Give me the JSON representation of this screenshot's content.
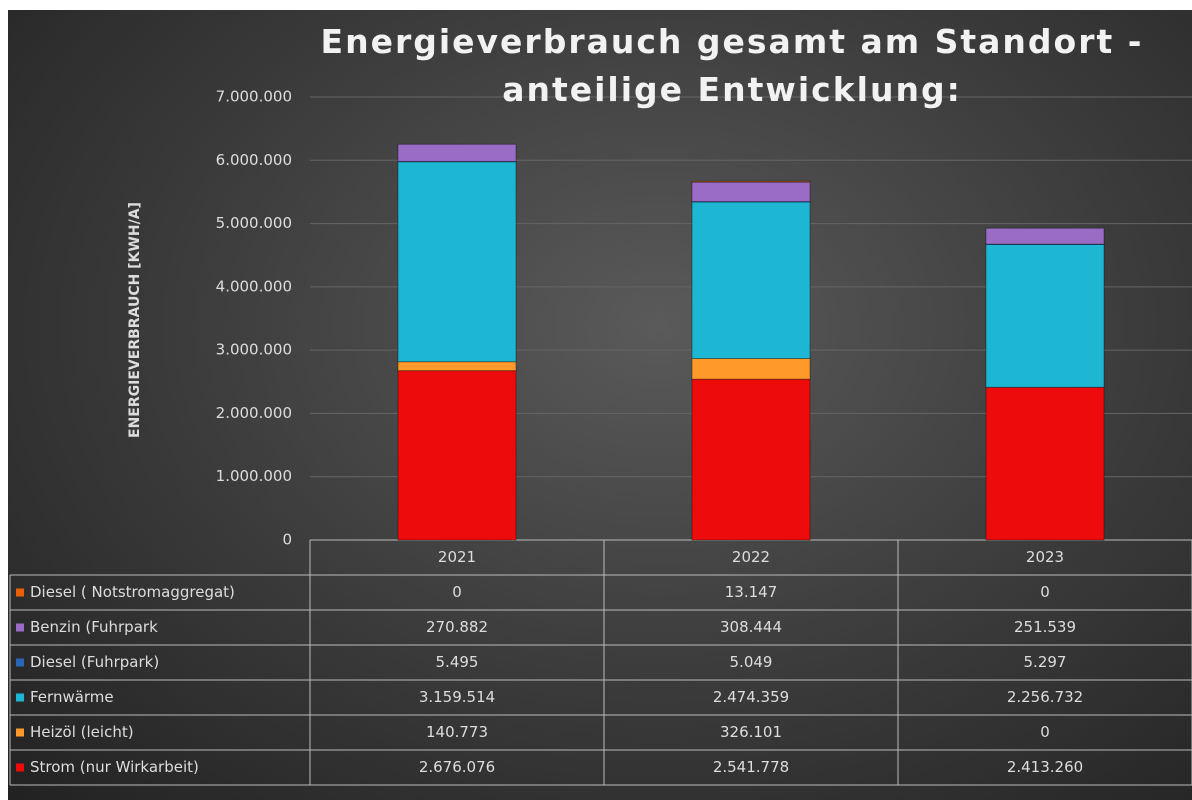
{
  "chart_data": {
    "type": "bar",
    "stacked": true,
    "title": "Energieverbrauch gesamt am Standort - anteilige Entwicklung:",
    "y_label": "ENERGIEVERBRAUCH [KWH/A]",
    "categories": [
      "2021",
      "2022",
      "2023"
    ],
    "series": [
      {
        "name": "Diesel ( Notstromaggregat)",
        "color": "#e8600a",
        "values": [
          0,
          13147,
          0
        ],
        "value_labels": [
          "0",
          "13.147",
          "0"
        ]
      },
      {
        "name": "Benzin (Fuhrpark",
        "color": "#9a6cc6",
        "values": [
          270882,
          308444,
          251539
        ],
        "value_labels": [
          "270.882",
          "308.444",
          "251.539"
        ]
      },
      {
        "name": "Diesel (Fuhrpark)",
        "color": "#2a66b8",
        "values": [
          5495,
          5049,
          5297
        ],
        "value_labels": [
          "5.495",
          "5.049",
          "5.297"
        ]
      },
      {
        "name": "Fernwärme",
        "color": "#1db6d3",
        "values": [
          3159514,
          2474359,
          2256732
        ],
        "value_labels": [
          "3.159.514",
          "2.474.359",
          "2.256.732"
        ]
      },
      {
        "name": "Heizöl (leicht)",
        "color": "#ff9a2a",
        "values": [
          140773,
          326101,
          0
        ],
        "value_labels": [
          "140.773",
          "326.101",
          "0"
        ]
      },
      {
        "name": "Strom (nur Wirkarbeit)",
        "color": "#ee0b0b",
        "values": [
          2676076,
          2541778,
          2413260
        ],
        "value_labels": [
          "2.676.076",
          "2.541.778",
          "2.413.260"
        ]
      }
    ],
    "ylim": [
      0,
      7000000
    ],
    "yticks": [
      0,
      {
        "value": 1000000,
        "label": "1.000.000"
      },
      {
        "value": 2000000,
        "label": "2.000.000"
      },
      {
        "value": 3000000,
        "label": "3.000.000"
      },
      {
        "value": 4000000,
        "label": "4.000.000"
      },
      {
        "value": 5000000,
        "label": "5.000.000"
      },
      {
        "value": 6000000,
        "label": "6.000.000"
      },
      {
        "value": 7000000,
        "label": "7.000.000"
      }
    ],
    "grid": true
  }
}
